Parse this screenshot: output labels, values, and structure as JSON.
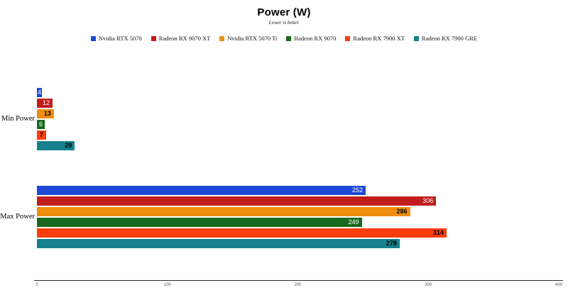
{
  "title": "Power (W)",
  "subtitle": "Lower is better",
  "chart_data": {
    "type": "bar",
    "orientation": "horizontal",
    "title": "Power (W)",
    "subtitle": "Lower is better",
    "categories": [
      "Min Power",
      "Max Power"
    ],
    "series": [
      {
        "name": "Nvidia RTX 5070",
        "color": "#1d49d6",
        "values": [
          4,
          252
        ],
        "label_color": "#ffffff",
        "label_bold": false
      },
      {
        "name": "Radeon RX 9070 XT",
        "color": "#c11d1d",
        "values": [
          12,
          306
        ],
        "label_color": "#ffffff",
        "label_bold": false
      },
      {
        "name": "Nvidia RTX 5070 Ti",
        "color": "#ef8e10",
        "values": [
          13,
          286
        ],
        "label_color": "#000000",
        "label_bold": true
      },
      {
        "name": "Radeon RX 9070",
        "color": "#17691d",
        "values": [
          6,
          249
        ],
        "label_color": "#ffffff",
        "label_bold": false
      },
      {
        "name": "Radeon RX 7900 XT",
        "color": "#fb3d0c",
        "values": [
          7,
          314
        ],
        "label_color": "#000000",
        "label_bold": true
      },
      {
        "name": "Radeon RX 7900 GRE",
        "color": "#17808d",
        "values": [
          29,
          278
        ],
        "label_color": "#000000",
        "label_bold": true
      }
    ],
    "xlim": [
      0,
      400
    ],
    "x_ticks": [
      0,
      100,
      200,
      300,
      400
    ],
    "legend_position": "top",
    "grid": false
  }
}
